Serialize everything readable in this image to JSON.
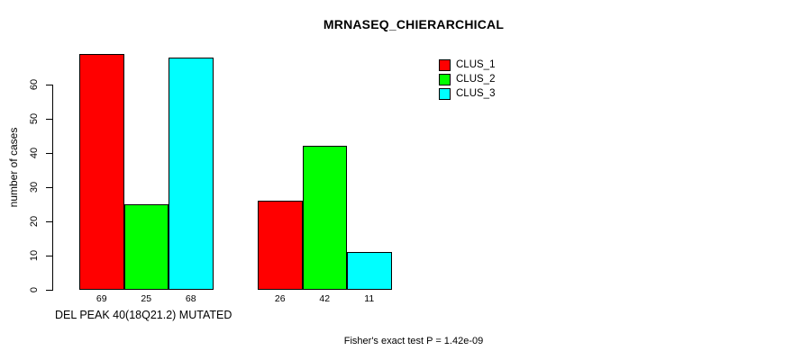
{
  "chart_data": {
    "type": "bar",
    "title": "MRNASEQ_CHIERARCHICAL",
    "ylabel": "number of cases",
    "xlabel": "DEL PEAK 40(18Q21.2) MUTATED",
    "footer": "Fisher's exact test P = 1.42e-09",
    "legend_position": "top-right",
    "grid": false,
    "bar_border_color": "#000000",
    "background_color": "#ffffff",
    "yticks": [
      0,
      10,
      20,
      30,
      40,
      50,
      60
    ],
    "ylim": [
      0,
      69
    ],
    "show_value_labels": true,
    "series": [
      {
        "name": "CLUS_1",
        "color": "#ff0000",
        "values": [
          69,
          26
        ]
      },
      {
        "name": "CLUS_2",
        "color": "#00ff00",
        "values": [
          25,
          42
        ]
      },
      {
        "name": "CLUS_3",
        "color": "#00ffff",
        "values": [
          68,
          11
        ]
      }
    ]
  }
}
